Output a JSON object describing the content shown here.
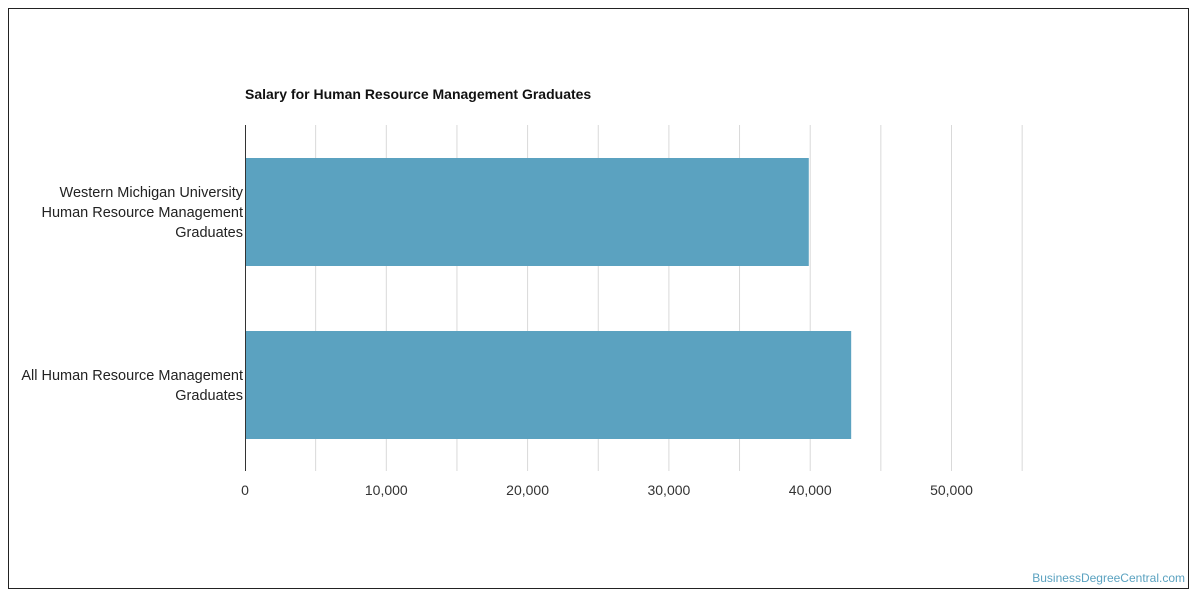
{
  "chart_data": {
    "type": "bar",
    "orientation": "horizontal",
    "title": "Salary for Human Resource Management Graduates",
    "categories": [
      [
        "Western Michigan University",
        "Human Resource Management",
        "Graduates"
      ],
      [
        "All Human Resource Management",
        "Graduates"
      ]
    ],
    "values": [
      39900,
      42900
    ],
    "xlim": [
      0,
      55000
    ],
    "xticks": [
      0,
      10000,
      20000,
      30000,
      40000,
      50000
    ],
    "xtick_labels": [
      "0",
      "10,000",
      "20,000",
      "30,000",
      "40,000",
      "50,000"
    ],
    "bar_color": "#5ba2c0",
    "grid": true
  },
  "watermark": "BusinessDegreeCentral.com"
}
